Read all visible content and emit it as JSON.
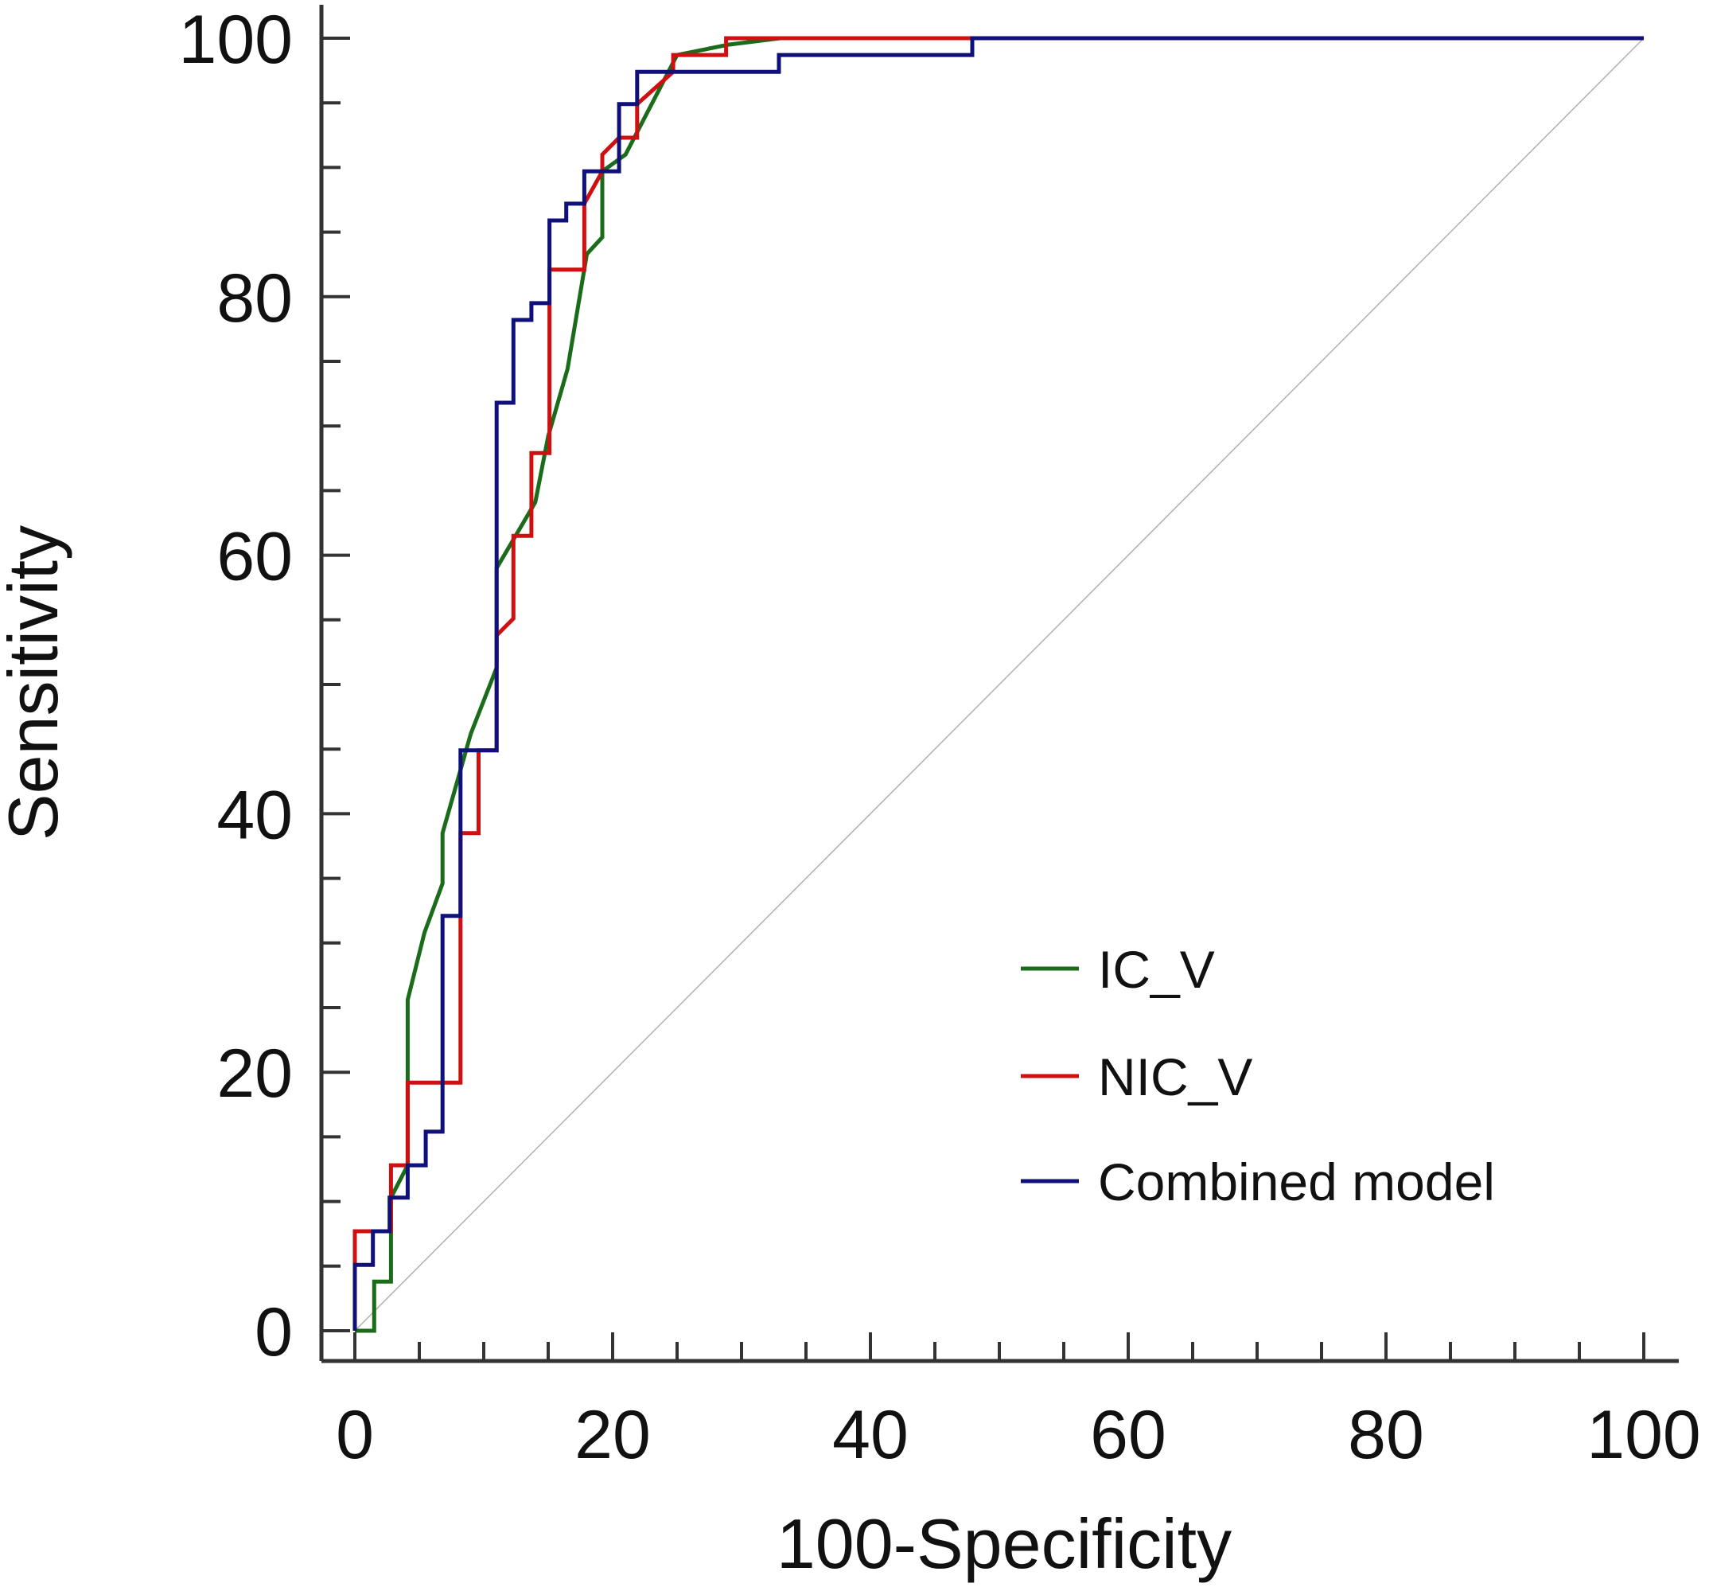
{
  "chart_data": {
    "type": "line",
    "title": "",
    "xlabel": "100-Specificity",
    "ylabel": "Sensitivity",
    "xlim": [
      0,
      100
    ],
    "ylim": [
      0,
      100
    ],
    "xticks": [
      0,
      20,
      40,
      60,
      80,
      100
    ],
    "yticks": [
      0,
      20,
      40,
      60,
      80,
      100
    ],
    "minor_tick_step": 5,
    "grid": false,
    "legend_position": "bottom-right",
    "reference_line": {
      "x": [
        0,
        100
      ],
      "y": [
        0,
        100
      ],
      "color": "#b0b0b0"
    },
    "series": [
      {
        "name": "IC_V",
        "color": "#1a6b1a",
        "x": [
          0,
          1.5,
          1.5,
          2.8,
          2.8,
          4.1,
          4.1,
          5.4,
          6.8,
          6.8,
          9,
          11,
          11,
          14,
          15,
          16.5,
          18,
          19.2,
          19.2,
          21,
          25,
          29,
          33,
          100
        ],
        "y": [
          0,
          0,
          3.8,
          3.8,
          10.3,
          12.8,
          25.6,
          30.8,
          34.6,
          38.5,
          46.2,
          51.3,
          59,
          64.1,
          69.2,
          74.4,
          83.3,
          84.6,
          89.7,
          91,
          98.7,
          99.5,
          100,
          100
        ]
      },
      {
        "name": "NIC_V",
        "color": "#d01010",
        "x": [
          0,
          0,
          2.8,
          2.8,
          4.1,
          4.1,
          8.2,
          8.2,
          9.6,
          9.6,
          11,
          11,
          12.3,
          12.3,
          13.7,
          13.7,
          15.1,
          15.1,
          17.8,
          17.8,
          19.2,
          19.2,
          20.5,
          20.5,
          21.9,
          21.9,
          24.7,
          24.7,
          28.8,
          28.8,
          47.9,
          47.9,
          100
        ],
        "y": [
          0,
          7.7,
          7.7,
          12.8,
          12.8,
          19.2,
          19.2,
          38.5,
          38.5,
          44.9,
          44.9,
          53.8,
          55.1,
          61.5,
          61.5,
          67.9,
          67.9,
          82.1,
          82.1,
          87.2,
          89.7,
          91,
          92.3,
          92.3,
          92.3,
          94.9,
          97.4,
          98.7,
          98.7,
          100,
          100,
          100,
          100
        ]
      },
      {
        "name": "Combined model",
        "color": "#10107a",
        "x": [
          0,
          0,
          1.4,
          1.4,
          2.7,
          2.7,
          4.1,
          4.1,
          5.5,
          5.5,
          6.8,
          6.8,
          8.2,
          8.2,
          11,
          11,
          12.3,
          12.3,
          13.7,
          13.7,
          15.1,
          15.1,
          16.4,
          16.4,
          17.8,
          17.8,
          20.5,
          20.5,
          21.9,
          21.9,
          32.9,
          32.9,
          47.9,
          47.9,
          100
        ],
        "y": [
          0,
          5.1,
          5.1,
          7.7,
          7.7,
          10.3,
          10.3,
          12.8,
          12.8,
          15.4,
          15.4,
          32.1,
          32.1,
          44.9,
          44.9,
          71.8,
          71.8,
          78.2,
          78.2,
          79.5,
          79.5,
          85.9,
          85.9,
          87.2,
          87.2,
          89.7,
          89.7,
          94.9,
          94.9,
          97.4,
          97.4,
          98.7,
          98.7,
          100,
          100
        ]
      }
    ]
  }
}
